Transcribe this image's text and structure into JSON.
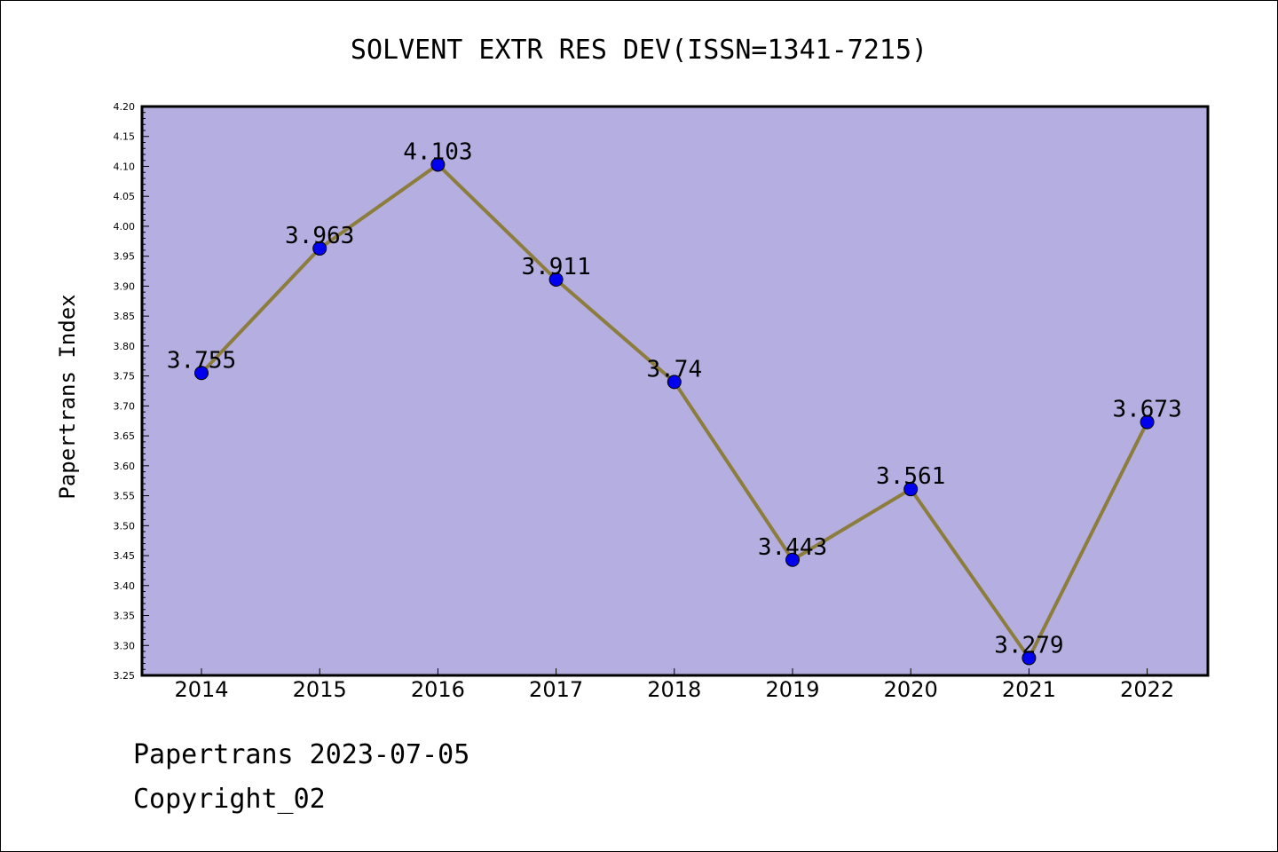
{
  "chart_data": {
    "type": "line",
    "title": "SOLVENT EXTR RES DEV(ISSN=1341-7215)",
    "xlabel": "",
    "ylabel": "Papertrans Index",
    "categories": [
      "2014",
      "2015",
      "2016",
      "2017",
      "2018",
      "2019",
      "2020",
      "2021",
      "2022"
    ],
    "values": [
      3.755,
      3.963,
      4.103,
      3.911,
      3.74,
      3.443,
      3.561,
      3.279,
      3.673
    ],
    "data_labels": [
      "3.755",
      "3.963",
      "4.103",
      "3.911",
      "3.74",
      "3.443",
      "3.561",
      "3.279",
      "3.673"
    ],
    "ylim": [
      3.25,
      4.2
    ],
    "y_major_ticks": [
      "3.25",
      "3.30",
      "3.35",
      "3.40",
      "3.45",
      "3.50",
      "3.55",
      "3.60",
      "3.65",
      "3.70",
      "3.75",
      "3.80",
      "3.85",
      "3.90",
      "3.95",
      "4.00",
      "4.05",
      "4.10",
      "4.15",
      "4.20"
    ],
    "grid": false,
    "colors": {
      "plot_background": "#b4aee1",
      "line": "#8c7d3c",
      "marker": "#0000ee"
    }
  },
  "footer": {
    "line1": "Papertrans 2023-07-05",
    "line2": "Copyright_02"
  }
}
